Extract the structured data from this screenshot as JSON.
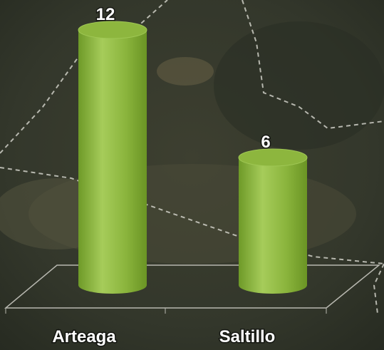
{
  "chart_data": {
    "type": "bar",
    "categories": [
      "Arteaga",
      "Saltillo"
    ],
    "values": [
      12,
      6
    ],
    "color": "#8db63e"
  }
}
